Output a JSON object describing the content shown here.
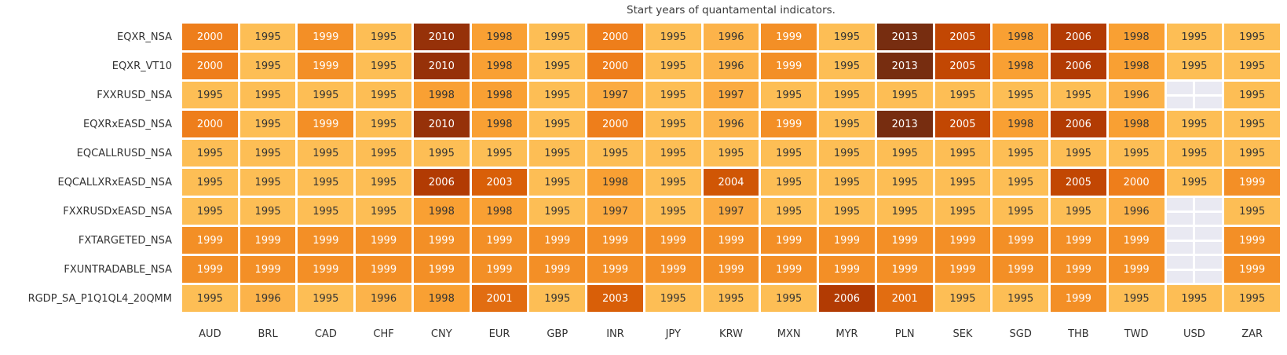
{
  "chart_data": {
    "type": "heatmap",
    "title": "Start years of quantamental indicators.",
    "xlabel": "",
    "ylabel": "",
    "columns": [
      "AUD",
      "BRL",
      "CAD",
      "CHF",
      "CNY",
      "EUR",
      "GBP",
      "INR",
      "JPY",
      "KRW",
      "MXN",
      "MYR",
      "PLN",
      "SEK",
      "SGD",
      "THB",
      "TWD",
      "USD",
      "ZAR"
    ],
    "rows": [
      {
        "label": "EQXR_NSA",
        "values": [
          2000,
          1995,
          1999,
          1995,
          2010,
          1998,
          1995,
          2000,
          1995,
          1996,
          1999,
          1995,
          2013,
          2005,
          1998,
          2006,
          1998,
          1995,
          1995
        ]
      },
      {
        "label": "EQXR_VT10",
        "values": [
          2000,
          1995,
          1999,
          1995,
          2010,
          1998,
          1995,
          2000,
          1995,
          1996,
          1999,
          1995,
          2013,
          2005,
          1998,
          2006,
          1998,
          1995,
          1995
        ]
      },
      {
        "label": "FXXRUSD_NSA",
        "values": [
          1995,
          1995,
          1995,
          1995,
          1998,
          1998,
          1995,
          1997,
          1995,
          1997,
          1995,
          1995,
          1995,
          1995,
          1995,
          1995,
          1996,
          null,
          1995
        ]
      },
      {
        "label": "EQXRxEASD_NSA",
        "values": [
          2000,
          1995,
          1999,
          1995,
          2010,
          1998,
          1995,
          2000,
          1995,
          1996,
          1999,
          1995,
          2013,
          2005,
          1998,
          2006,
          1998,
          1995,
          1995
        ]
      },
      {
        "label": "EQCALLRUSD_NSA",
        "values": [
          1995,
          1995,
          1995,
          1995,
          1995,
          1995,
          1995,
          1995,
          1995,
          1995,
          1995,
          1995,
          1995,
          1995,
          1995,
          1995,
          1995,
          1995,
          1995
        ]
      },
      {
        "label": "EQCALLXRxEASD_NSA",
        "values": [
          1995,
          1995,
          1995,
          1995,
          2006,
          2003,
          1995,
          1998,
          1995,
          2004,
          1995,
          1995,
          1995,
          1995,
          1995,
          2005,
          2000,
          1995,
          1999
        ]
      },
      {
        "label": "FXXRUSDxEASD_NSA",
        "values": [
          1995,
          1995,
          1995,
          1995,
          1998,
          1998,
          1995,
          1997,
          1995,
          1997,
          1995,
          1995,
          1995,
          1995,
          1995,
          1995,
          1996,
          null,
          1995
        ]
      },
      {
        "label": "FXTARGETED_NSA",
        "values": [
          1999,
          1999,
          1999,
          1999,
          1999,
          1999,
          1999,
          1999,
          1999,
          1999,
          1999,
          1999,
          1999,
          1999,
          1999,
          1999,
          1999,
          null,
          1999
        ]
      },
      {
        "label": "FXUNTRADABLE_NSA",
        "values": [
          1999,
          1999,
          1999,
          1999,
          1999,
          1999,
          1999,
          1999,
          1999,
          1999,
          1999,
          1999,
          1999,
          1999,
          1999,
          1999,
          1999,
          null,
          1999
        ]
      },
      {
        "label": "RGDP_SA_P1Q1QL4_20QMM",
        "values": [
          1995,
          1996,
          1995,
          1996,
          1998,
          2001,
          1995,
          2003,
          1995,
          1995,
          1995,
          2006,
          2001,
          1995,
          1995,
          1999,
          1995,
          1995,
          1995
        ]
      }
    ],
    "value_range": [
      1995,
      2013
    ],
    "colormap": "oranges",
    "year_colors": {
      "1995": "#fdbe55",
      "1996": "#fcb34a",
      "1997": "#fbab41",
      "1998": "#f9a033",
      "1999": "#f38f26",
      "2000": "#ee7e1b",
      "2001": "#e26d11",
      "2003": "#d95f08",
      "2004": "#d05605",
      "2005": "#c24703",
      "2006": "#b23b03",
      "2010": "#963109",
      "2013": "#772d10"
    },
    "nan_color": "#e9e9f2",
    "cell_text_dark": "#333333",
    "cell_text_light": "#ffffff",
    "white_text_min_year": 1999,
    "grid_gap_color": "#ffffff",
    "legend": "none"
  }
}
